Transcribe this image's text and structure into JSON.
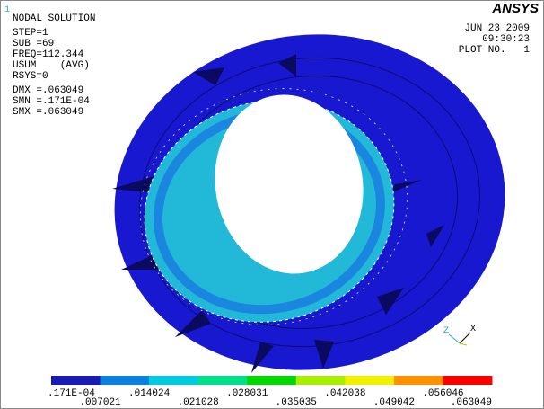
{
  "window_number": "1",
  "info": [
    "NODAL SOLUTION",
    "STEP=1",
    "SUB =69",
    "FREQ=112.344",
    "USUM    (AVG)",
    "RSYS=0",
    "DMX =.063049",
    "SMN =.171E-04",
    "SMX =.063049"
  ],
  "logo": "ANSYS",
  "stamp": [
    "JUN 23 2009",
    "09:30:23",
    "PLOT NO.   1"
  ],
  "triad": {
    "z": "Z",
    "x": "X"
  },
  "legend": {
    "colors": [
      "#1a1ab4",
      "#0a80e0",
      "#00cce0",
      "#00e08a",
      "#00d800",
      "#a8ee00",
      "#f0f000",
      "#ff9000",
      "#ff0000"
    ],
    "labels": [
      ".171E-04",
      ".007021",
      ".014024",
      ".021028",
      ".028031",
      ".035035",
      ".042038",
      ".049042",
      ".056046",
      ".063049"
    ]
  }
}
